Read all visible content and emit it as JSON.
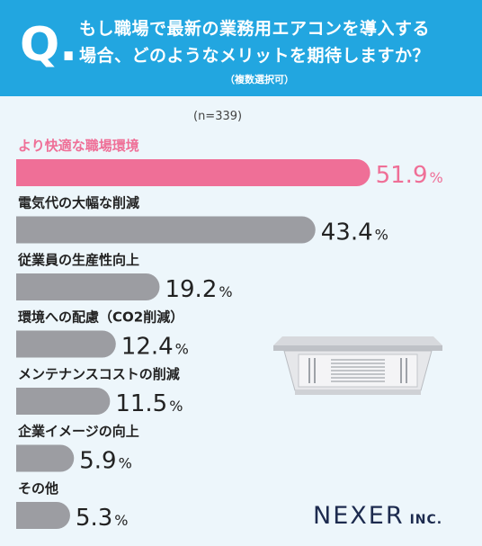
{
  "header": {
    "q_mark": "Q.",
    "line1": "もし職場で最新の業務用エアコンを導入する",
    "line2": "場合、どのようなメリットを期待しますか？",
    "note": "（複数選択可）"
  },
  "n_label": "(n=339)",
  "logo": {
    "name": "NEXER",
    "suffix": "INC."
  },
  "colors": {
    "header_bg": "#22a6e0",
    "highlight": "#ef6f97",
    "bar": "#9c9da2",
    "text": "#222222",
    "background": "#edf6fb"
  },
  "chart_data": {
    "type": "bar",
    "orientation": "horizontal",
    "categories": [
      "より快適な職場環境",
      "電気代の大幅な削減",
      "従業員の生産性向上",
      "環境への配慮（CO2削減）",
      "メンテナンスコストの削減",
      "企業イメージの向上",
      "その他"
    ],
    "values": [
      51.9,
      43.4,
      19.2,
      12.4,
      11.5,
      5.9,
      5.3
    ],
    "unit": "%",
    "highlight_index": 0
  }
}
